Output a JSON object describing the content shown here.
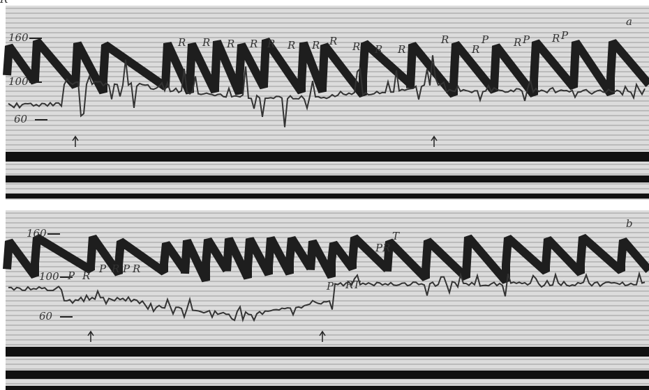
{
  "panels": [
    {
      "label": "a",
      "scale_labels": [
        "160",
        "100",
        "60"
      ],
      "annotations": [
        "R",
        "R",
        "R",
        "R",
        "R",
        "R",
        "R",
        "R",
        "R",
        "R",
        "R",
        "R",
        "R",
        "P",
        "R",
        "P",
        "R",
        "P",
        "R"
      ]
    },
    {
      "label": "b",
      "scale_labels": [
        "160",
        "100",
        "60"
      ],
      "annotations": [
        "P",
        "R",
        "P",
        "R",
        "P",
        "R",
        "PR",
        "T",
        "P",
        "RT"
      ]
    }
  ]
}
